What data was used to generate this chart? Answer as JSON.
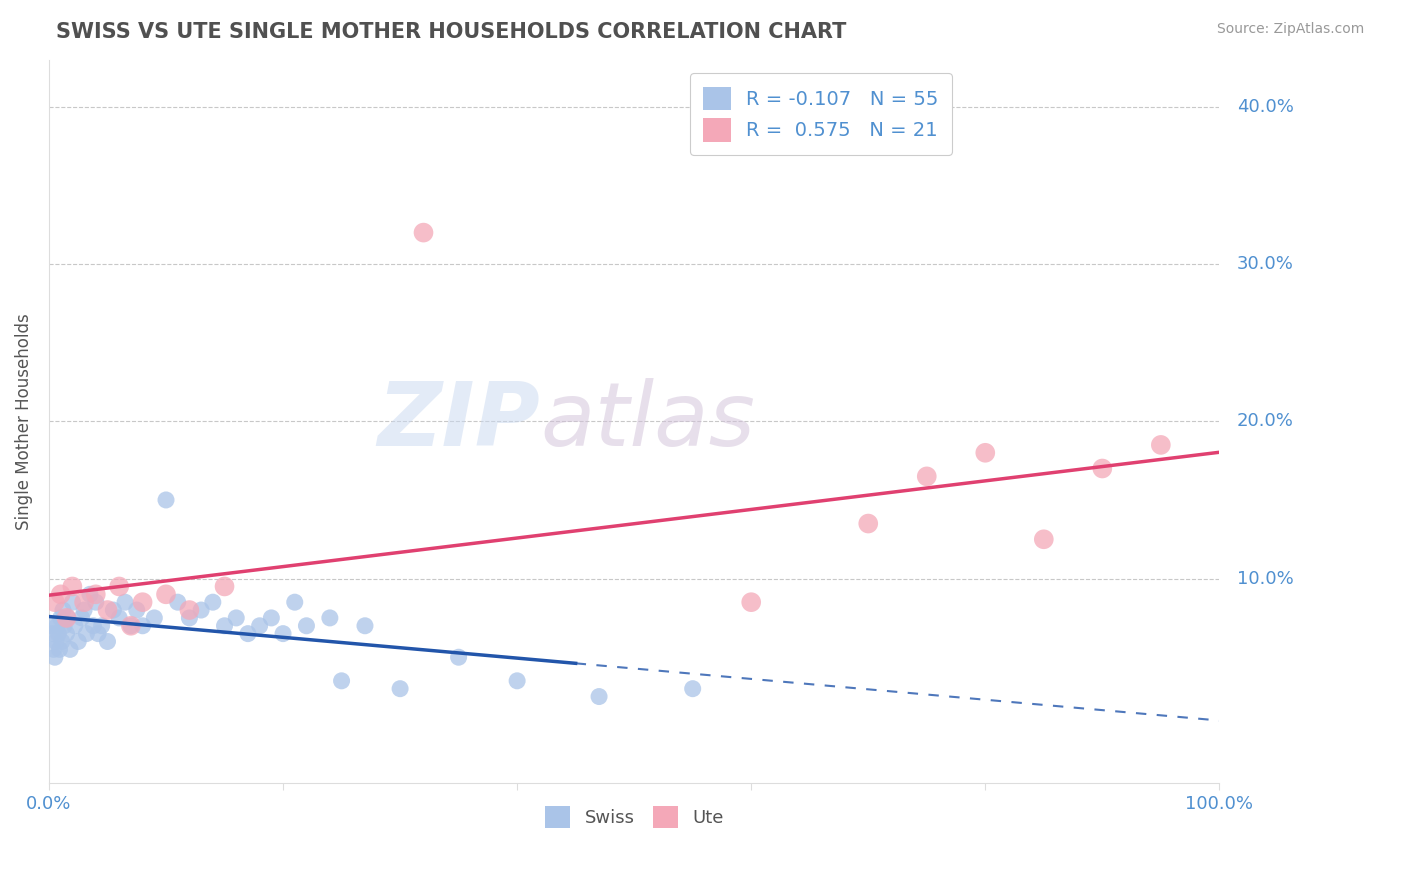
{
  "title": "SWISS VS UTE SINGLE MOTHER HOUSEHOLDS CORRELATION CHART",
  "source": "Source: ZipAtlas.com",
  "ylabel": "Single Mother Households",
  "legend_swiss_label": "Swiss",
  "legend_ute_label": "Ute",
  "swiss_R": -0.107,
  "swiss_N": 55,
  "ute_R": 0.575,
  "ute_N": 21,
  "swiss_color": "#aac4e8",
  "ute_color": "#f4a8b8",
  "swiss_line_color": "#2255aa",
  "ute_line_color": "#e04070",
  "background_color": "#ffffff",
  "grid_color": "#c8c8c8",
  "title_color": "#505050",
  "axis_label_color": "#5090d0",
  "watermark_zip": "ZIP",
  "watermark_atlas": "atlas",
  "swiss_x": [
    0.2,
    0.3,
    0.4,
    0.5,
    0.6,
    0.7,
    0.8,
    0.9,
    1.0,
    1.1,
    1.2,
    1.3,
    1.5,
    1.6,
    1.8,
    2.0,
    2.2,
    2.5,
    2.8,
    3.0,
    3.2,
    3.5,
    3.8,
    4.0,
    4.2,
    4.5,
    5.0,
    5.5,
    6.0,
    6.5,
    7.0,
    7.5,
    8.0,
    9.0,
    10.0,
    11.0,
    12.0,
    13.0,
    14.0,
    15.0,
    16.0,
    17.0,
    18.0,
    19.0,
    20.0,
    21.0,
    22.0,
    24.0,
    25.0,
    27.0,
    30.0,
    35.0,
    40.0,
    47.0,
    55.0
  ],
  "swiss_y": [
    7.0,
    6.5,
    5.5,
    5.0,
    6.0,
    7.0,
    6.5,
    5.5,
    7.5,
    6.0,
    8.0,
    7.0,
    6.5,
    7.5,
    5.5,
    8.5,
    7.0,
    6.0,
    7.5,
    8.0,
    6.5,
    9.0,
    7.0,
    8.5,
    6.5,
    7.0,
    6.0,
    8.0,
    7.5,
    8.5,
    7.0,
    8.0,
    7.0,
    7.5,
    15.0,
    8.5,
    7.5,
    8.0,
    8.5,
    7.0,
    7.5,
    6.5,
    7.0,
    7.5,
    6.5,
    8.5,
    7.0,
    7.5,
    3.5,
    7.0,
    3.0,
    5.0,
    3.5,
    2.5,
    3.0
  ],
  "ute_x": [
    0.5,
    1.0,
    1.5,
    2.0,
    3.0,
    4.0,
    5.0,
    6.0,
    7.0,
    8.0,
    10.0,
    12.0,
    15.0,
    32.0,
    60.0,
    70.0,
    75.0,
    80.0,
    85.0,
    90.0,
    95.0
  ],
  "ute_y": [
    8.5,
    9.0,
    7.5,
    9.5,
    8.5,
    9.0,
    8.0,
    9.5,
    7.0,
    8.5,
    9.0,
    8.0,
    9.5,
    32.0,
    8.5,
    13.5,
    16.5,
    18.0,
    12.5,
    17.0,
    18.5
  ],
  "xlim": [
    0,
    100
  ],
  "ylim": [
    -3,
    43
  ],
  "ytick_vals": [
    0,
    10,
    20,
    30,
    40
  ],
  "ytick_labels": [
    "",
    "10.0%",
    "20.0%",
    "30.0%",
    "40.0%"
  ]
}
